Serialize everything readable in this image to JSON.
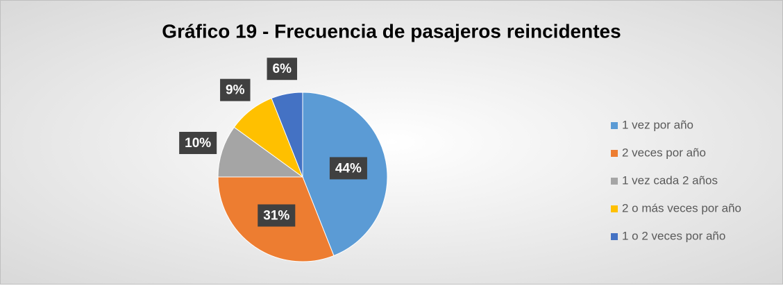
{
  "chart_data": {
    "type": "pie",
    "title": "Gráfico 19 - Frecuencia de pasajeros reincidentes",
    "categories": [
      "1 vez por año",
      "2 veces por año",
      "1 vez cada 2 años",
      "2 o más veces por año",
      "1 o 2 veces por año"
    ],
    "values": [
      44,
      31,
      10,
      9,
      6
    ],
    "value_labels": [
      "44%",
      "31%",
      "10%",
      "9%",
      "6%"
    ],
    "colors": [
      "#5b9bd5",
      "#ed7d31",
      "#a5a5a5",
      "#ffc000",
      "#4472c4"
    ],
    "legend": "right"
  }
}
